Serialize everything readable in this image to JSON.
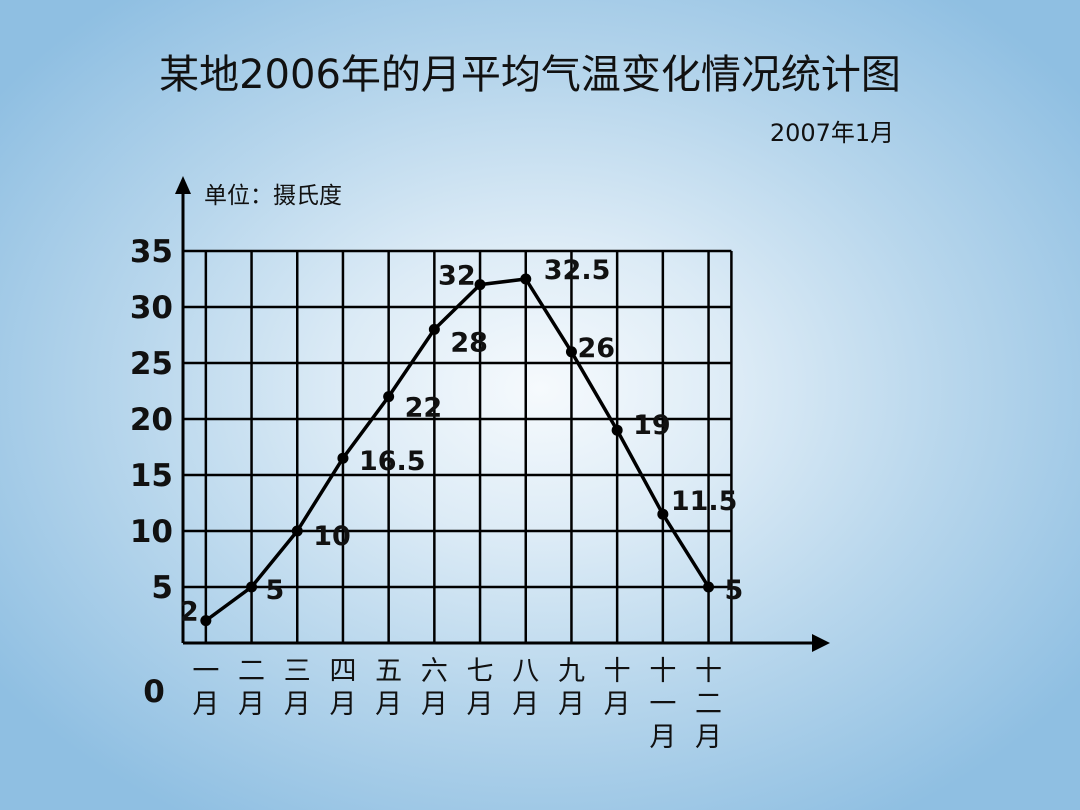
{
  "title": "某地2006年的月平均气温变化情况统计图",
  "date": "2007年1月",
  "chart_data": {
    "type": "line",
    "title": "某地2006年的月平均气温变化情况统计图",
    "unit_label": "单位：摄氏度",
    "origin_label": "0",
    "categories": [
      "一月",
      "二月",
      "三月",
      "四月",
      "五月",
      "六月",
      "七月",
      "八月",
      "九月",
      "十月",
      "十一月",
      "十二月"
    ],
    "values": [
      2,
      5,
      10,
      16.5,
      22,
      28,
      32,
      32.5,
      26,
      19,
      11.5,
      5
    ],
    "data_labels": [
      "2",
      "5",
      "10",
      "16.5",
      "22",
      "28",
      "32",
      "32.5",
      "26",
      "19",
      "11.5",
      "5"
    ],
    "y_ticks": [
      "5",
      "10",
      "15",
      "20",
      "25",
      "30",
      "35"
    ],
    "ylim": [
      0,
      35
    ],
    "grid": true,
    "line_color": "#000000"
  }
}
